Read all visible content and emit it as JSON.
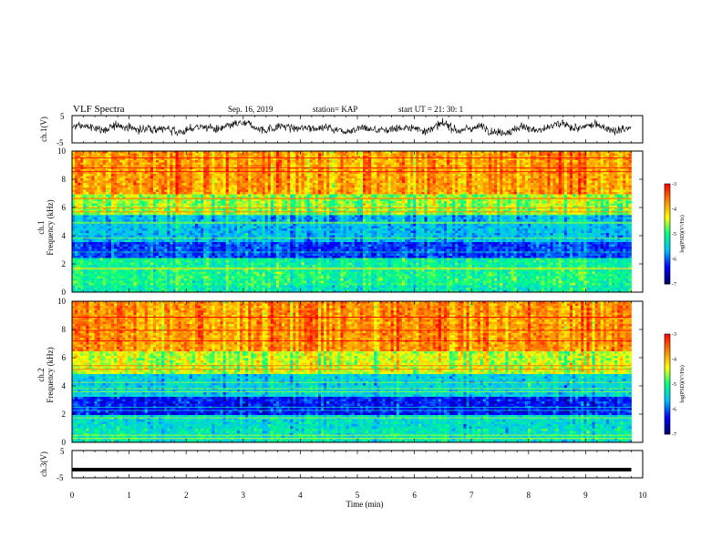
{
  "header": {
    "title": "VLF Spectra",
    "date": "Sep. 16, 2019",
    "station": "station= KAP",
    "start_ut": "start  UT  =   21: 30: 1"
  },
  "chart_data": [
    {
      "type": "line",
      "ylabel": "ch.1(V)",
      "ylim": [
        -5,
        5
      ],
      "y_ticks": [
        "5",
        "-5"
      ],
      "xlim": [
        0,
        10
      ],
      "data_x_max": 9.8,
      "baseline": 0.5,
      "color": "#000000"
    },
    {
      "type": "heatmap",
      "ylabel_channel": "ch.1",
      "ylabel": "Frequency  (kHz)",
      "ylim": [
        0,
        10
      ],
      "y_ticks": [
        "0",
        "2",
        "4",
        "6",
        "8",
        "10"
      ],
      "xlim": [
        0,
        10
      ],
      "data_x_max": 9.8,
      "z_label": "log(PSD)(V²/Hz)",
      "z_ticks": [
        "-3",
        "-4",
        "-5",
        "-6",
        "-7"
      ],
      "zlim": [
        -7,
        -3
      ],
      "colormap": [
        "#000066",
        "#0000ff",
        "#00bfff",
        "#00ff80",
        "#ffff00",
        "#ff8000",
        "#ff0000",
        "#ffffff"
      ],
      "bands": [
        [
          0,
          0.5,
          -5.2
        ],
        [
          0.5,
          1.5,
          -5.0
        ],
        [
          1.5,
          2.5,
          -5.1
        ],
        [
          2.5,
          3.5,
          -6.1
        ],
        [
          3.5,
          5.5,
          -5.6
        ],
        [
          5.5,
          7.0,
          -4.6
        ],
        [
          7.0,
          10,
          -3.8
        ]
      ]
    },
    {
      "type": "heatmap",
      "ylabel_channel": "ch.2",
      "ylabel": "Frequency  (kHz)",
      "ylim": [
        0,
        10
      ],
      "y_ticks": [
        "0",
        "2",
        "4",
        "6",
        "8",
        "10"
      ],
      "xlim": [
        0,
        10
      ],
      "data_x_max": 9.8,
      "z_label": "log(PSD)(V²/Hz)",
      "z_ticks": [
        "-3",
        "-4",
        "-5",
        "-6",
        "-7"
      ],
      "zlim": [
        -7,
        -3
      ],
      "colormap": [
        "#000066",
        "#0000ff",
        "#00bfff",
        "#00ff80",
        "#ffff00",
        "#ff8000",
        "#ff0000",
        "#ffffff"
      ],
      "bands": [
        [
          0,
          1.0,
          -5.3
        ],
        [
          1.0,
          2.0,
          -5.4
        ],
        [
          2.0,
          3.3,
          -6.3
        ],
        [
          3.3,
          4.8,
          -5.5
        ],
        [
          4.8,
          6.5,
          -4.5
        ],
        [
          6.5,
          10,
          -3.8
        ]
      ]
    },
    {
      "type": "line",
      "ylabel": "ch.3(V)",
      "ylim": [
        -5,
        5
      ],
      "y_ticks": [
        "5",
        "-5"
      ],
      "xlim": [
        0,
        10
      ],
      "data_x_max": 9.8,
      "baseline": -2,
      "color": "#000000",
      "xlabel": "Time  (min)",
      "x_ticks": [
        "0",
        "1",
        "2",
        "3",
        "4",
        "5",
        "6",
        "7",
        "8",
        "9",
        "10"
      ]
    }
  ]
}
